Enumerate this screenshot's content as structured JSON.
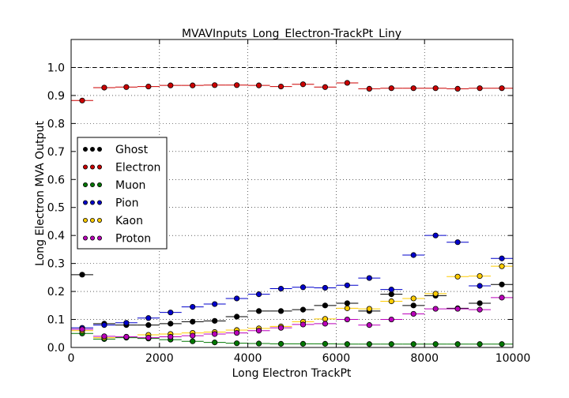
{
  "chart_data": {
    "type": "scatter",
    "title": "MVAVInputs_Long_Electron-TrackPt_Liny",
    "xlabel": "Long Electron TrackPt",
    "ylabel": "Long Electron MVA Output",
    "xlim": [
      0,
      10000
    ],
    "ylim": [
      0,
      1.1
    ],
    "xticks": [
      0,
      2000,
      4000,
      6000,
      8000,
      10000
    ],
    "yticks": [
      0.0,
      0.1,
      0.2,
      0.3,
      0.4,
      0.5,
      0.6,
      0.7,
      0.8,
      0.9,
      1.0
    ],
    "ytick_labels": [
      "0.0",
      "0.1",
      "0.2",
      "0.3",
      "0.4",
      "0.5",
      "0.6",
      "0.7",
      "0.8",
      "0.9",
      "1.0"
    ],
    "grid": true,
    "reference_line": 1.0,
    "legend_position": "center-left",
    "bin_width": 500,
    "x": [
      250,
      750,
      1250,
      1750,
      2250,
      2750,
      3250,
      3750,
      4250,
      4750,
      5250,
      5750,
      6250,
      6750,
      7250,
      7750,
      8250,
      8750,
      9250,
      9750
    ],
    "series": [
      {
        "name": "Ghost",
        "color": "#000000",
        "values": [
          0.26,
          0.085,
          0.08,
          0.08,
          0.085,
          0.092,
          0.095,
          0.11,
          0.13,
          0.13,
          0.135,
          0.15,
          0.158,
          0.13,
          0.19,
          0.15,
          0.185,
          0.14,
          0.158,
          0.225
        ]
      },
      {
        "name": "Electron",
        "color": "#cc0000",
        "values": [
          0.882,
          0.928,
          0.93,
          0.932,
          0.936,
          0.936,
          0.937,
          0.937,
          0.936,
          0.932,
          0.94,
          0.93,
          0.945,
          0.924,
          0.926,
          0.926,
          0.926,
          0.924,
          0.926,
          0.926
        ]
      },
      {
        "name": "Muon",
        "color": "#007700",
        "values": [
          0.05,
          0.03,
          0.035,
          0.032,
          0.028,
          0.022,
          0.018,
          0.015,
          0.014,
          0.013,
          0.013,
          0.013,
          0.012,
          0.012,
          0.012,
          0.012,
          0.012,
          0.012,
          0.012,
          0.012
        ]
      },
      {
        "name": "Pion",
        "color": "#0000cc",
        "values": [
          0.07,
          0.08,
          0.088,
          0.105,
          0.125,
          0.145,
          0.155,
          0.175,
          0.19,
          0.21,
          0.215,
          0.213,
          0.222,
          0.248,
          0.207,
          0.33,
          0.4,
          0.376,
          0.22,
          0.318
        ]
      },
      {
        "name": "Kaon",
        "color": "#ffcc00",
        "values": [
          0.06,
          0.035,
          0.038,
          0.045,
          0.048,
          0.052,
          0.055,
          0.062,
          0.068,
          0.075,
          0.092,
          0.102,
          0.14,
          0.138,
          0.165,
          0.175,
          0.192,
          0.253,
          0.255,
          0.29
        ]
      },
      {
        "name": "Proton",
        "color": "#bb00bb",
        "values": [
          0.065,
          0.04,
          0.038,
          0.035,
          0.038,
          0.042,
          0.048,
          0.052,
          0.06,
          0.07,
          0.082,
          0.085,
          0.1,
          0.08,
          0.1,
          0.12,
          0.138,
          0.138,
          0.135,
          0.178
        ]
      }
    ]
  }
}
